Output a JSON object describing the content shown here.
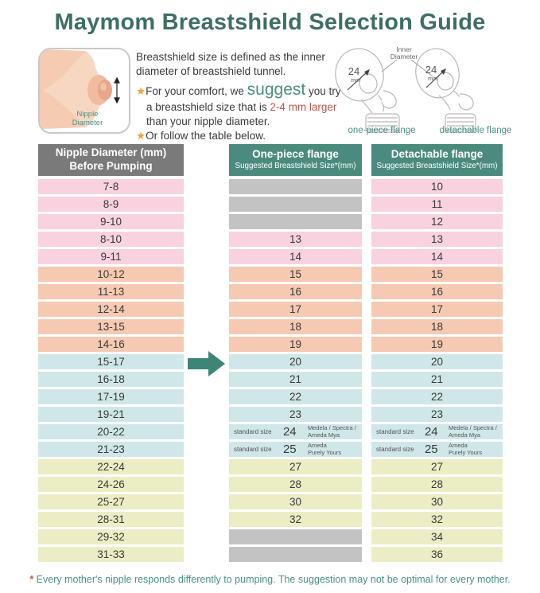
{
  "title": "Maymom Breastshield Selection Guide",
  "intro": {
    "star": "★",
    "sentence1": "Breastshield size is defined as the inner diameter of breastshield tunnel.",
    "b1_pre": "For your comfort, we ",
    "b1_suggest": "suggest",
    "b1_mid": " you try a breastshield size that is ",
    "b1_red": "2-4 mm larger",
    "b1_post": " than your nipple diameter.",
    "b2": "Or follow the table below."
  },
  "diagram": {
    "nipple_label_line1": "Nipple",
    "nipple_label_line2": "Diameter",
    "inner_diameter_line1": "Inner",
    "inner_diameter_line2": "Diameter",
    "size_value": "24",
    "size_unit": "mm",
    "one_piece_label": "one-piece flange",
    "detachable_label": "detachable flange"
  },
  "table": {
    "headers": [
      {
        "line1": "Nipple Diameter (mm)",
        "line2": "Before Pumping"
      },
      {
        "line1": "One-piece flange",
        "line2": "Suggested Breastshield Size*(mm)"
      },
      {
        "line1": "Detachable flange",
        "line2": "Suggested Breastshield Size*(mm)"
      }
    ],
    "rows": [
      {
        "nipple": "7-8",
        "color": "pink",
        "one_piece": null,
        "detachable": "10"
      },
      {
        "nipple": "8-9",
        "color": "pink",
        "one_piece": null,
        "detachable": "11"
      },
      {
        "nipple": "9-10",
        "color": "pink",
        "one_piece": null,
        "detachable": "12"
      },
      {
        "nipple": "8-10",
        "color": "pink",
        "one_piece": "13",
        "detachable": "13"
      },
      {
        "nipple": "9-11",
        "color": "pink",
        "one_piece": "14",
        "detachable": "14"
      },
      {
        "nipple": "10-12",
        "color": "salmon",
        "one_piece": "15",
        "detachable": "15"
      },
      {
        "nipple": "11-13",
        "color": "salmon",
        "one_piece": "16",
        "detachable": "16"
      },
      {
        "nipple": "12-14",
        "color": "salmon",
        "one_piece": "17",
        "detachable": "17"
      },
      {
        "nipple": "13-15",
        "color": "salmon",
        "one_piece": "18",
        "detachable": "18"
      },
      {
        "nipple": "14-16",
        "color": "salmon",
        "one_piece": "19",
        "detachable": "19"
      },
      {
        "nipple": "15-17",
        "color": "tealrow",
        "one_piece": "20",
        "detachable": "20"
      },
      {
        "nipple": "16-18",
        "color": "tealrow",
        "one_piece": "21",
        "detachable": "21"
      },
      {
        "nipple": "17-19",
        "color": "tealrow",
        "one_piece": "22",
        "detachable": "22"
      },
      {
        "nipple": "19-21",
        "color": "tealrow",
        "one_piece": "23",
        "detachable": "23"
      },
      {
        "nipple": "20-22",
        "color": "tealrow",
        "one_piece": "24",
        "detachable": "24",
        "left_note": "standard size",
        "right_note": [
          "Medela / Spectra /",
          "Ameda Mya"
        ]
      },
      {
        "nipple": "21-23",
        "color": "tealrow",
        "one_piece": "25",
        "detachable": "25",
        "left_note": "standard size",
        "right_note": [
          "Ameda",
          "Purely Yours"
        ]
      },
      {
        "nipple": "22-24",
        "color": "yellow",
        "one_piece": "27",
        "detachable": "27"
      },
      {
        "nipple": "24-26",
        "color": "yellow",
        "one_piece": "28",
        "detachable": "28"
      },
      {
        "nipple": "25-27",
        "color": "yellow",
        "one_piece": "30",
        "detachable": "30"
      },
      {
        "nipple": "28-31",
        "color": "yellow",
        "one_piece": "32",
        "detachable": "32"
      },
      {
        "nipple": "29-32",
        "color": "yellow",
        "one_piece": null,
        "detachable": "34"
      },
      {
        "nipple": "31-33",
        "color": "yellow",
        "one_piece": null,
        "detachable": "36"
      }
    ]
  },
  "footnote": {
    "asterisk": "*",
    "text": "Every mother's nipple responds differently to pumping. The suggestion may not be optimal for every mother."
  },
  "colors": {
    "title_teal": "#3e6e66",
    "header_gray": "#7a7a7a",
    "header_teal": "#4a8b7e",
    "accent_teal": "#4a9184",
    "highlight_red": "#bf544b",
    "star_orange": "#f0a23c",
    "arrow_green": "#3d8577",
    "row_pink": "#f8d2de",
    "row_salmon": "#f5c9b2",
    "row_teal": "#cfe7e8",
    "row_yellow": "#ecedc4",
    "row_empty_gray": "#c3c3c3"
  }
}
